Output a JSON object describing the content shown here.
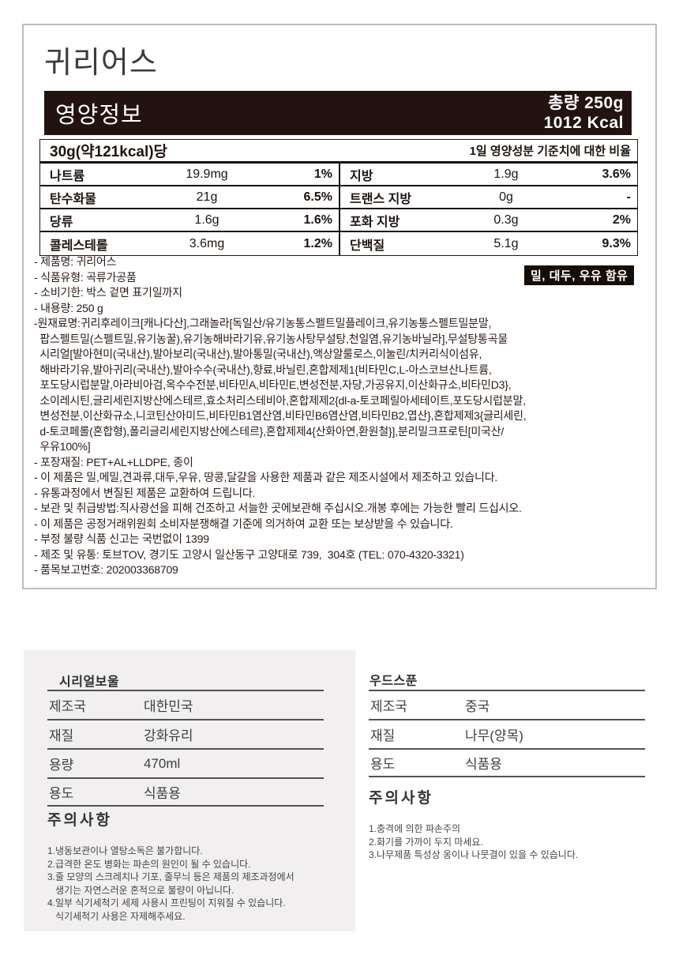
{
  "page": {
    "title": "귀리어스"
  },
  "nutrition": {
    "bar": {
      "label": "영양정보",
      "total_label": "총량 250g",
      "kcal_label": "1012 Kcal"
    },
    "serving_label": "30g(약121kcal)당",
    "daily_value_label": "1일 영양성분 기준치에 대한 비율",
    "left_rows": [
      {
        "label": "나트륨",
        "amount": "19.9mg",
        "percent": "1%"
      },
      {
        "label": "탄수화물",
        "amount": "21g",
        "percent": "6.5%"
      },
      {
        "label": "당류",
        "amount": "1.6g",
        "percent": "1.6%"
      },
      {
        "label": "콜레스테롤",
        "amount": "3.6mg",
        "percent": "1.2%"
      }
    ],
    "right_rows": [
      {
        "label": "지방",
        "amount": "1.9g",
        "percent": "3.6%"
      },
      {
        "label": "트랜스 지방",
        "amount": "0g",
        "percent": "-"
      },
      {
        "label": "포화 지방",
        "amount": "0.3g",
        "percent": "2%"
      },
      {
        "label": "단백질",
        "amount": "5.1g",
        "percent": "9.3%"
      }
    ]
  },
  "allergen_badge": "밀, 대두, 우유 함유",
  "details_lines": [
    "- 제품명: 귀리어스",
    "- 식품유형: 곡류가공품",
    "- 소비기한: 박스 겉면 표기일까지",
    "- 내용량: 250 g",
    "-원재료명:귀리후레이크[캐나다산],그래놀라[독일산/유기농통스펠트밀플레이크,유기농통스펠트밀분말,",
    "  팝스펠트밀(스펠트밀,유기농꿀),유기농해바라기유,유기농사탕무설탕,천일염,유기농바닐라],무설탕통곡물",
    "  시리얼[발아현미(국내산),발아보리(국내산),발아통밀(국내산),액상알룰로스,이눌린/치커리식이섬유,",
    "  해바라기유,발아귀리(국내산),발아수수(국내산),향료,바닐린,혼합제제1{비타민C,L-아스코브산나트륨,",
    "  포도당시럽분말,아라비아검,옥수수전분,비타민A,비타민E,변성전분,자당,가공유지,이산화규소,비타민D3},",
    "  소이레시틴,글리세린지방산에스테르,효소처리스테비아,혼합제제2{dl-a-토코페릴아세테이트,포도당시럽분말,",
    "  변성전분,이산화규소,니코틴산아미드,비타민B1염산염,비타민B6염산염,비타민B2,엽산},혼합제제3{글리세린,",
    "  d-토코페롤(혼합형),폴리글리세린지방산에스테르},혼합제제4{산화아연,환원철}],분리밀크프로틴[미국산/",
    "  우유100%]",
    "- 포장재질: PET+AL+LLDPE, 종이",
    "- 이 제품은 밀,메밀,견과류,대두,우유, 땅콩,달걀을 사용한 제품과 같은 제조시설에서 제조하고 있습니다.",
    "- 유통과정에서 변질된 제품은 교환하여 드립니다.",
    "- 보관 및 취급방법:직사광선을 피해 건조하고 서늘한 곳에보관해 주십시오.개봉 후에는 가능한 빨리 드십시오.",
    "- 이 제품은 공정거래위원회 소비자분쟁해결 기준에 의거하여 교환 또는 보상받을 수 있습니다.",
    "- 부정 불량 식품 신고는 국번없이 1399",
    "- 제조 및 유통: 토브TOV, 경기도 고양시 일산동구 고양대로 739,  304호 (TEL: 070-4320-3321)",
    "- 품목보고번호: 202003368709"
  ],
  "cereal_bowl": {
    "title": "시리얼보울",
    "rows": [
      {
        "label": "제조국",
        "value": "대한민국"
      },
      {
        "label": "재질",
        "value": "강화유리"
      },
      {
        "label": "용량",
        "value": "470ml"
      },
      {
        "label": "용도",
        "value": "식품용"
      }
    ],
    "caution_title": "주의사항",
    "caution_lines": [
      "1.냉동보관이나 열탕소독은 불가합니다.",
      "2.급격한 온도 병화는 파손의 원인이 될 수 있습니다.",
      "3.줄 모양의 스크레치나 기포, 줄무늬 등은 제품의 제조과정에서",
      "   생기는 자연스러운 흔적으로 불량이 아닙니다.",
      "4.일부 식기세척기 세제 사용시 프린팅이 지워질 수 있습니다.",
      "   식기세척기 사용은 자제해주세요."
    ]
  },
  "wood_spoon": {
    "title": "우드스푼",
    "rows": [
      {
        "label": "제조국",
        "value": "중국"
      },
      {
        "label": "재질",
        "value": "나무(양목)"
      },
      {
        "label": "용도",
        "value": "식품용"
      }
    ],
    "caution_title": "주의사항",
    "caution_lines": [
      "1.충격에 의한 파손주의",
      "2.화기를 가까이 두지 마세요.",
      "3.나무제품 특성상 옹이나 나뭇결이 있을 수 있습니다."
    ]
  },
  "colors": {
    "bar_bg": "#231310",
    "badge_bg": "#170d07",
    "card_bg": "#f1efef",
    "border_gray": "#bcbcbc",
    "table_border": "#111111"
  }
}
